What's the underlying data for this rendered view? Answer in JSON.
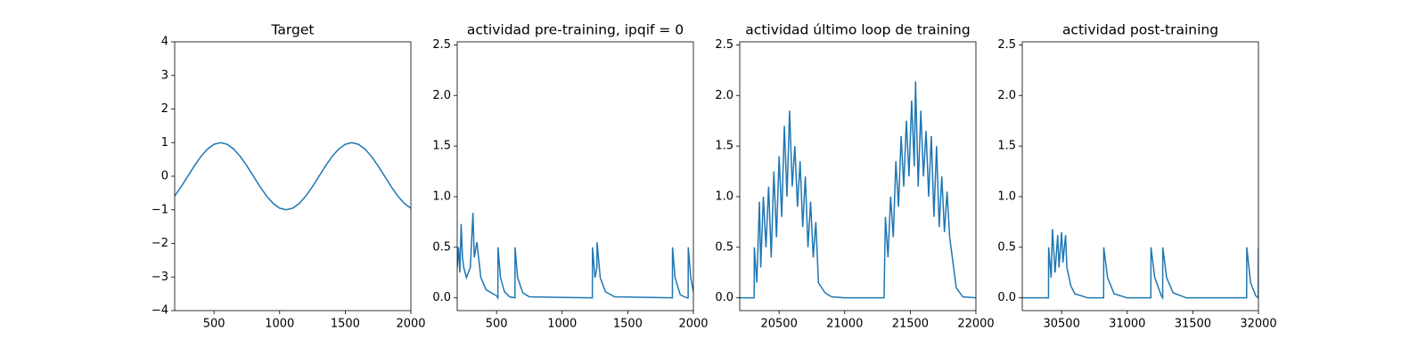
{
  "chart_data": [
    {
      "type": "line",
      "title": "Target",
      "color": "#1f77b4",
      "x": [
        200,
        250,
        300,
        350,
        400,
        450,
        500,
        550,
        600,
        650,
        700,
        750,
        800,
        850,
        900,
        950,
        1000,
        1050,
        1100,
        1150,
        1200,
        1250,
        1300,
        1350,
        1400,
        1450,
        1500,
        1550,
        1600,
        1650,
        1700,
        1750,
        1800,
        1850,
        1900,
        1950,
        2000
      ],
      "values": [
        -0.588,
        -0.309,
        0,
        0.309,
        0.588,
        0.809,
        0.951,
        1,
        0.951,
        0.809,
        0.588,
        0.309,
        0,
        -0.309,
        -0.588,
        -0.809,
        -0.951,
        -1,
        -0.951,
        -0.809,
        -0.588,
        -0.309,
        0,
        0.309,
        0.588,
        0.809,
        0.951,
        1,
        0.951,
        0.809,
        0.588,
        0.309,
        0,
        -0.309,
        -0.588,
        -0.809,
        -0.951
      ],
      "xlim": [
        200,
        2000
      ],
      "xticks": [
        500,
        1000,
        1500,
        2000
      ],
      "ylim": [
        -4,
        4
      ],
      "yticks": [
        {
          "value": -4,
          "label": "−4"
        },
        {
          "value": -3,
          "label": "−3"
        },
        {
          "value": -2,
          "label": "−2"
        },
        {
          "value": -1,
          "label": "−1"
        },
        0,
        1,
        2,
        3,
        4
      ]
    },
    {
      "type": "line",
      "title": "actividad pre-training, ipqif = 0",
      "color": "#1f77b4",
      "x": [
        200,
        210,
        220,
        230,
        240,
        250,
        270,
        300,
        320,
        330,
        350,
        380,
        420,
        500,
        510,
        511,
        530,
        560,
        600,
        640,
        641,
        660,
        700,
        750,
        1230,
        1231,
        1250,
        1265,
        1266,
        1290,
        1330,
        1400,
        1840,
        1841,
        1860,
        1900,
        1950,
        1960,
        1961,
        1980,
        2000
      ],
      "values": [
        0.3,
        0.5,
        0.25,
        0.73,
        0.4,
        0.3,
        0.2,
        0.3,
        0.84,
        0.4,
        0.55,
        0.2,
        0.08,
        0.02,
        0,
        0.5,
        0.2,
        0.06,
        0.01,
        0,
        0.5,
        0.2,
        0.05,
        0.01,
        0,
        0.5,
        0.2,
        0.3,
        0.55,
        0.2,
        0.06,
        0.01,
        0,
        0.5,
        0.2,
        0.03,
        0,
        0,
        0.5,
        0.2,
        0.06
      ],
      "xlim": [
        200,
        2000
      ],
      "xticks": [
        500,
        1000,
        1500,
        2000
      ],
      "ylim": [
        -0.126,
        2.53
      ],
      "yticks": [
        {
          "value": 0,
          "label": "0.0"
        },
        0.5,
        {
          "value": 1,
          "label": "1.0"
        },
        1.5,
        {
          "value": 2,
          "label": "2.0"
        },
        2.5
      ]
    },
    {
      "type": "line",
      "title": "actividad último loop de training",
      "color": "#1f77b4",
      "x": [
        20200,
        20310,
        20311,
        20330,
        20350,
        20360,
        20380,
        20400,
        20420,
        20440,
        20460,
        20480,
        20500,
        20520,
        20540,
        20560,
        20580,
        20600,
        20620,
        20640,
        20660,
        20680,
        20700,
        20720,
        20740,
        20760,
        20780,
        20800,
        20850,
        20900,
        21000,
        21300,
        21310,
        21330,
        21350,
        21370,
        21390,
        21410,
        21430,
        21450,
        21470,
        21490,
        21510,
        21530,
        21540,
        21560,
        21580,
        21600,
        21620,
        21640,
        21660,
        21680,
        21700,
        21720,
        21740,
        21760,
        21780,
        21800,
        21850,
        21900,
        22000
      ],
      "values": [
        0,
        0,
        0.5,
        0.15,
        0.95,
        0.3,
        1.0,
        0.5,
        1.1,
        0.4,
        1.25,
        0.6,
        1.4,
        0.8,
        1.7,
        1.0,
        1.85,
        1.1,
        1.5,
        0.9,
        1.35,
        0.7,
        1.2,
        0.5,
        0.95,
        0.4,
        0.75,
        0.15,
        0.05,
        0.01,
        0,
        0,
        0.8,
        0.4,
        1.0,
        0.6,
        1.35,
        0.9,
        1.6,
        1.1,
        1.75,
        1.2,
        1.95,
        1.3,
        2.14,
        1.1,
        1.85,
        1.2,
        1.65,
        1.0,
        1.6,
        0.8,
        1.5,
        0.7,
        1.2,
        0.65,
        1.05,
        0.6,
        0.1,
        0.01,
        0
      ],
      "xlim": [
        20200,
        22000
      ],
      "xticks": [
        20500,
        21000,
        21500,
        22000
      ],
      "ylim": [
        -0.126,
        2.53
      ],
      "yticks": [
        {
          "value": 0,
          "label": "0.0"
        },
        0.5,
        {
          "value": 1,
          "label": "1.0"
        },
        1.5,
        {
          "value": 2,
          "label": "2.0"
        },
        2.5
      ]
    },
    {
      "type": "line",
      "title": "actividad post-training",
      "color": "#1f77b4",
      "x": [
        30200,
        30400,
        30401,
        30420,
        30430,
        30450,
        30470,
        30480,
        30500,
        30510,
        30530,
        30540,
        30570,
        30600,
        30700,
        30820,
        30821,
        30850,
        30900,
        31000,
        31180,
        31181,
        31210,
        31260,
        31270,
        31271,
        31300,
        31350,
        31450,
        31910,
        31911,
        31940,
        31980,
        31999,
        32000
      ],
      "values": [
        0,
        0,
        0.5,
        0.2,
        0.68,
        0.25,
        0.62,
        0.3,
        0.65,
        0.35,
        0.62,
        0.3,
        0.12,
        0.04,
        0,
        0,
        0.5,
        0.2,
        0.04,
        0,
        0,
        0.5,
        0.2,
        0.02,
        0,
        0.5,
        0.2,
        0.05,
        0,
        0,
        0.5,
        0.15,
        0.02,
        0,
        0.5
      ],
      "xlim": [
        30200,
        32000
      ],
      "xticks": [
        30500,
        31000,
        31500,
        32000
      ],
      "ylim": [
        -0.126,
        2.53
      ],
      "yticks": [
        {
          "value": 0,
          "label": "0.0"
        },
        0.5,
        {
          "value": 1,
          "label": "1.0"
        },
        1.5,
        {
          "value": 2,
          "label": "2.0"
        },
        2.5
      ]
    }
  ]
}
